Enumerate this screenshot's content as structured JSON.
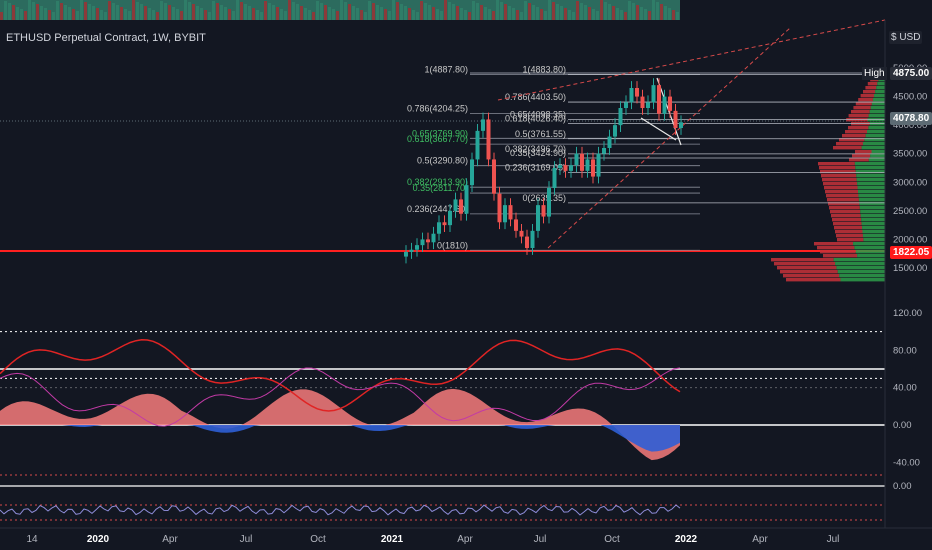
{
  "header": {
    "symbol_title": "ETHUSD Perpetual Contract, 1W, BYBIT",
    "currency": "$ USD"
  },
  "chart_data": {
    "type": "candlestick",
    "price_axis_ticks": [
      "5000.00",
      "4500.00",
      "4000.00",
      "3500.00",
      "3000.00",
      "2500.00",
      "2000.00",
      "1500.00"
    ],
    "price_labels": {
      "high_label": "High",
      "high_value": "4875.00",
      "last_value": "4078.80",
      "support_value": "1822.05"
    },
    "osc_axis_ticks": [
      "120.00",
      "80.00",
      "40.00",
      "0.00",
      "-40.00"
    ],
    "osc2_axis_ticks": [
      "0.00"
    ],
    "time_axis_ticks": [
      "14",
      "2020",
      "Apr",
      "Jul",
      "Oct",
      "2021",
      "Apr",
      "Jul",
      "Oct",
      "2022",
      "Apr",
      "Jul"
    ],
    "fib_levels_left": [
      {
        "label": "1(4887.80)",
        "price": 4887.8
      },
      {
        "label": "0.786(4204.25)",
        "price": 4204.25
      },
      {
        "label": "0.65(3769.90)",
        "price": 3769.9
      },
      {
        "label": "0.618(3667.70)",
        "price": 3667.7
      },
      {
        "label": "0.5(3290.80)",
        "price": 3290.8
      },
      {
        "label": "0.382(2913.90)",
        "price": 2913.9
      },
      {
        "label": "0.35(2811.70)",
        "price": 2811.7
      },
      {
        "label": "0.236(2447.60)",
        "price": 2447.6
      },
      {
        "label": "0(1810)",
        "price": 1810
      }
    ],
    "fib_levels_right": [
      {
        "label": "1(4883.80)",
        "price": 4883.8
      },
      {
        "label": "0.786(4403.50)",
        "price": 4403.5
      },
      {
        "label": "0.65(4098.35)",
        "price": 4098.35
      },
      {
        "label": "0.618(4026.40)",
        "price": 4026.4
      },
      {
        "label": "0.5(3761.55)",
        "price": 3761.55
      },
      {
        "label": "0.382(3496.70)",
        "price": 3496.7
      },
      {
        "label": "0.35(3424.90)",
        "price": 3424.9
      },
      {
        "label": "0.236(3169.05)",
        "price": 3169.05
      },
      {
        "label": "0(2639.35)",
        "price": 2639.35
      }
    ],
    "weekly_closes": [
      1780,
      1820,
      1900,
      2000,
      1950,
      2100,
      2300,
      2250,
      2500,
      2700,
      2450,
      2950,
      3400,
      3900,
      4100,
      3400,
      2800,
      2300,
      2600,
      2350,
      2150,
      2050,
      1850,
      2150,
      2600,
      2400,
      2900,
      3250,
      3300,
      3200,
      3300,
      3500,
      3200,
      3400,
      3100,
      3500,
      3600,
      3800,
      4000,
      4300,
      4400,
      4650,
      4500,
      4300,
      4400,
      4700,
      4200,
      4500,
      4250,
      3950,
      4050
    ]
  }
}
